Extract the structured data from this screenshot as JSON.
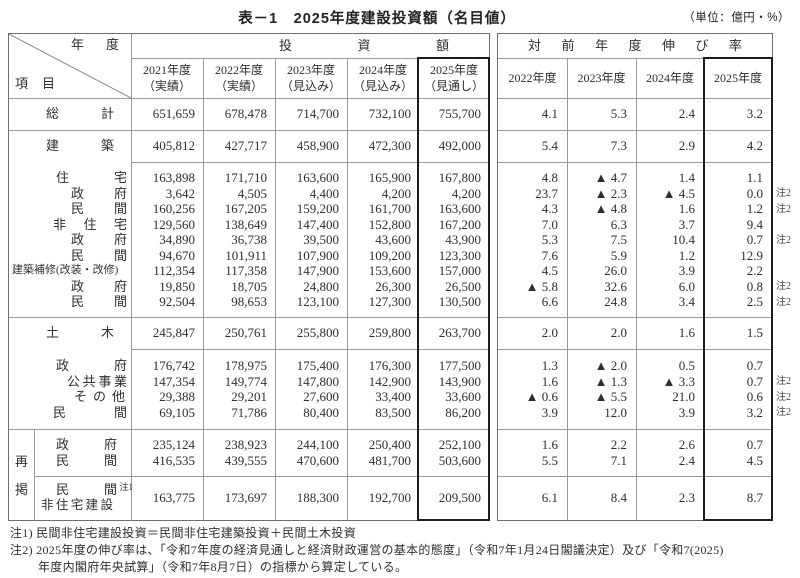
{
  "title": "表－1　2025年度建設投資額（名目値）",
  "unit": "（単位：億円・%）",
  "corner": {
    "top": "年度",
    "bottom": "項目"
  },
  "left_table": {
    "group_header": "投資額",
    "columns": [
      {
        "year": "2021年度",
        "note": "（実績）"
      },
      {
        "year": "2022年度",
        "note": "（実績）"
      },
      {
        "year": "2023年度",
        "note": "（見込み）"
      },
      {
        "year": "2024年度",
        "note": "（見込み）"
      },
      {
        "year": "2025年度",
        "note": "（見通し）"
      }
    ]
  },
  "right_table": {
    "group_header": "対前年度伸び率",
    "columns": [
      "2022年度",
      "2023年度",
      "2024年度",
      "2025年度"
    ]
  },
  "saikei_label": "再掲",
  "rows": [
    {
      "id": "sokei",
      "label": "総計",
      "values": [
        "651,659",
        "678,478",
        "714,700",
        "732,100",
        "755,700"
      ],
      "growth": [
        "4.1",
        "5.3",
        "2.4",
        "3.2"
      ],
      "note": ""
    },
    {
      "id": "kenchiku",
      "label": "建築",
      "values": [
        "405,812",
        "427,717",
        "458,900",
        "472,300",
        "492,000"
      ],
      "growth": [
        "5.4",
        "7.3",
        "2.9",
        "4.2"
      ],
      "note": ""
    },
    {
      "id": "jutaku",
      "label": "住宅",
      "values": [
        "163,898",
        "171,710",
        "163,600",
        "165,900",
        "167,800"
      ],
      "growth": [
        "4.8",
        "▲ 4.7",
        "1.4",
        "1.1"
      ],
      "note": ""
    },
    {
      "id": "jutaku-seifu",
      "label": "政府",
      "values": [
        "3,642",
        "4,505",
        "4,400",
        "4,200",
        "4,200"
      ],
      "growth": [
        "23.7",
        "▲ 2.3",
        "▲ 4.5",
        "0.0"
      ],
      "note": "注2"
    },
    {
      "id": "jutaku-minkan",
      "label": "民間",
      "values": [
        "160,256",
        "167,205",
        "159,200",
        "161,700",
        "163,600"
      ],
      "growth": [
        "4.3",
        "▲ 4.8",
        "1.6",
        "1.2"
      ],
      "note": "注2"
    },
    {
      "id": "hijutaku",
      "label": "非住宅",
      "values": [
        "129,560",
        "138,649",
        "147,400",
        "152,800",
        "167,200"
      ],
      "growth": [
        "7.0",
        "6.3",
        "3.7",
        "9.4"
      ],
      "note": ""
    },
    {
      "id": "hijutaku-seifu",
      "label": "政府",
      "values": [
        "34,890",
        "36,738",
        "39,500",
        "43,600",
        "43,900"
      ],
      "growth": [
        "5.3",
        "7.5",
        "10.4",
        "0.7"
      ],
      "note": "注2"
    },
    {
      "id": "hijutaku-minkan",
      "label": "民間",
      "values": [
        "94,670",
        "101,911",
        "107,900",
        "109,200",
        "123,300"
      ],
      "growth": [
        "7.6",
        "5.9",
        "1.2",
        "12.9"
      ],
      "note": ""
    },
    {
      "id": "hoshu",
      "label": "建築補修(改装・改修)",
      "values": [
        "112,354",
        "117,358",
        "147,900",
        "153,600",
        "157,000"
      ],
      "growth": [
        "4.5",
        "26.0",
        "3.9",
        "2.2"
      ],
      "note": ""
    },
    {
      "id": "hoshu-seifu",
      "label": "政府",
      "values": [
        "19,850",
        "18,705",
        "24,800",
        "26,300",
        "26,500"
      ],
      "growth": [
        "▲ 5.8",
        "32.6",
        "6.0",
        "0.8"
      ],
      "note": "注2"
    },
    {
      "id": "hoshu-minkan",
      "label": "民間",
      "values": [
        "92,504",
        "98,653",
        "123,100",
        "127,300",
        "130,500"
      ],
      "growth": [
        "6.6",
        "24.8",
        "3.4",
        "2.5"
      ],
      "note": "注2"
    },
    {
      "id": "doboku",
      "label": "土木",
      "values": [
        "245,847",
        "250,761",
        "255,800",
        "259,800",
        "263,700"
      ],
      "growth": [
        "2.0",
        "2.0",
        "1.6",
        "1.5"
      ],
      "note": ""
    },
    {
      "id": "doboku-seifu",
      "label": "政府",
      "values": [
        "176,742",
        "178,975",
        "175,400",
        "176,300",
        "177,500"
      ],
      "growth": [
        "1.3",
        "▲ 2.0",
        "0.5",
        "0.7"
      ],
      "note": ""
    },
    {
      "id": "kokyojigyo",
      "label": "公共事業",
      "values": [
        "147,354",
        "149,774",
        "147,800",
        "142,900",
        "143,900"
      ],
      "growth": [
        "1.6",
        "▲ 1.3",
        "▲ 3.3",
        "0.7"
      ],
      "note": "注2"
    },
    {
      "id": "sonota",
      "label": "その他",
      "values": [
        "29,388",
        "29,201",
        "27,600",
        "33,400",
        "33,600"
      ],
      "growth": [
        "▲ 0.6",
        "▲ 5.5",
        "21.0",
        "0.6"
      ],
      "note": "注2"
    },
    {
      "id": "doboku-minkan",
      "label": "民間",
      "values": [
        "69,105",
        "71,786",
        "80,400",
        "83,500",
        "86,200"
      ],
      "growth": [
        "3.9",
        "12.0",
        "3.9",
        "3.2"
      ],
      "note": "注2"
    },
    {
      "id": "saikei-seifu",
      "label": "政府",
      "values": [
        "235,124",
        "238,923",
        "244,100",
        "250,400",
        "252,100"
      ],
      "growth": [
        "1.6",
        "2.2",
        "2.6",
        "0.7"
      ],
      "note": ""
    },
    {
      "id": "saikei-minkan",
      "label": "民間",
      "values": [
        "416,535",
        "439,555",
        "470,600",
        "481,700",
        "503,600"
      ],
      "growth": [
        "5.5",
        "7.1",
        "2.4",
        "4.5"
      ],
      "note": ""
    },
    {
      "id": "saikei-minkan-hijutaku",
      "label": "民間",
      "label_sup": "注1",
      "label2": "非住宅建設",
      "values": [
        "163,775",
        "173,697",
        "188,300",
        "192,700",
        "209,500"
      ],
      "growth": [
        "6.1",
        "8.4",
        "2.3",
        "8.7"
      ],
      "note": ""
    }
  ],
  "footnotes": [
    "注1) 民間非住宅建設投資＝民間非住宅建築投資＋民間土木投資",
    "注2) 2025年度の伸び率は、「令和7年度の経済見通しと経済財政運営の基本的態度」（令和7年1月24日閣議決定）及び「令和7(2025)",
    "年度内閣府年央試算」（令和7年8月7日）の指標から算定している。"
  ]
}
